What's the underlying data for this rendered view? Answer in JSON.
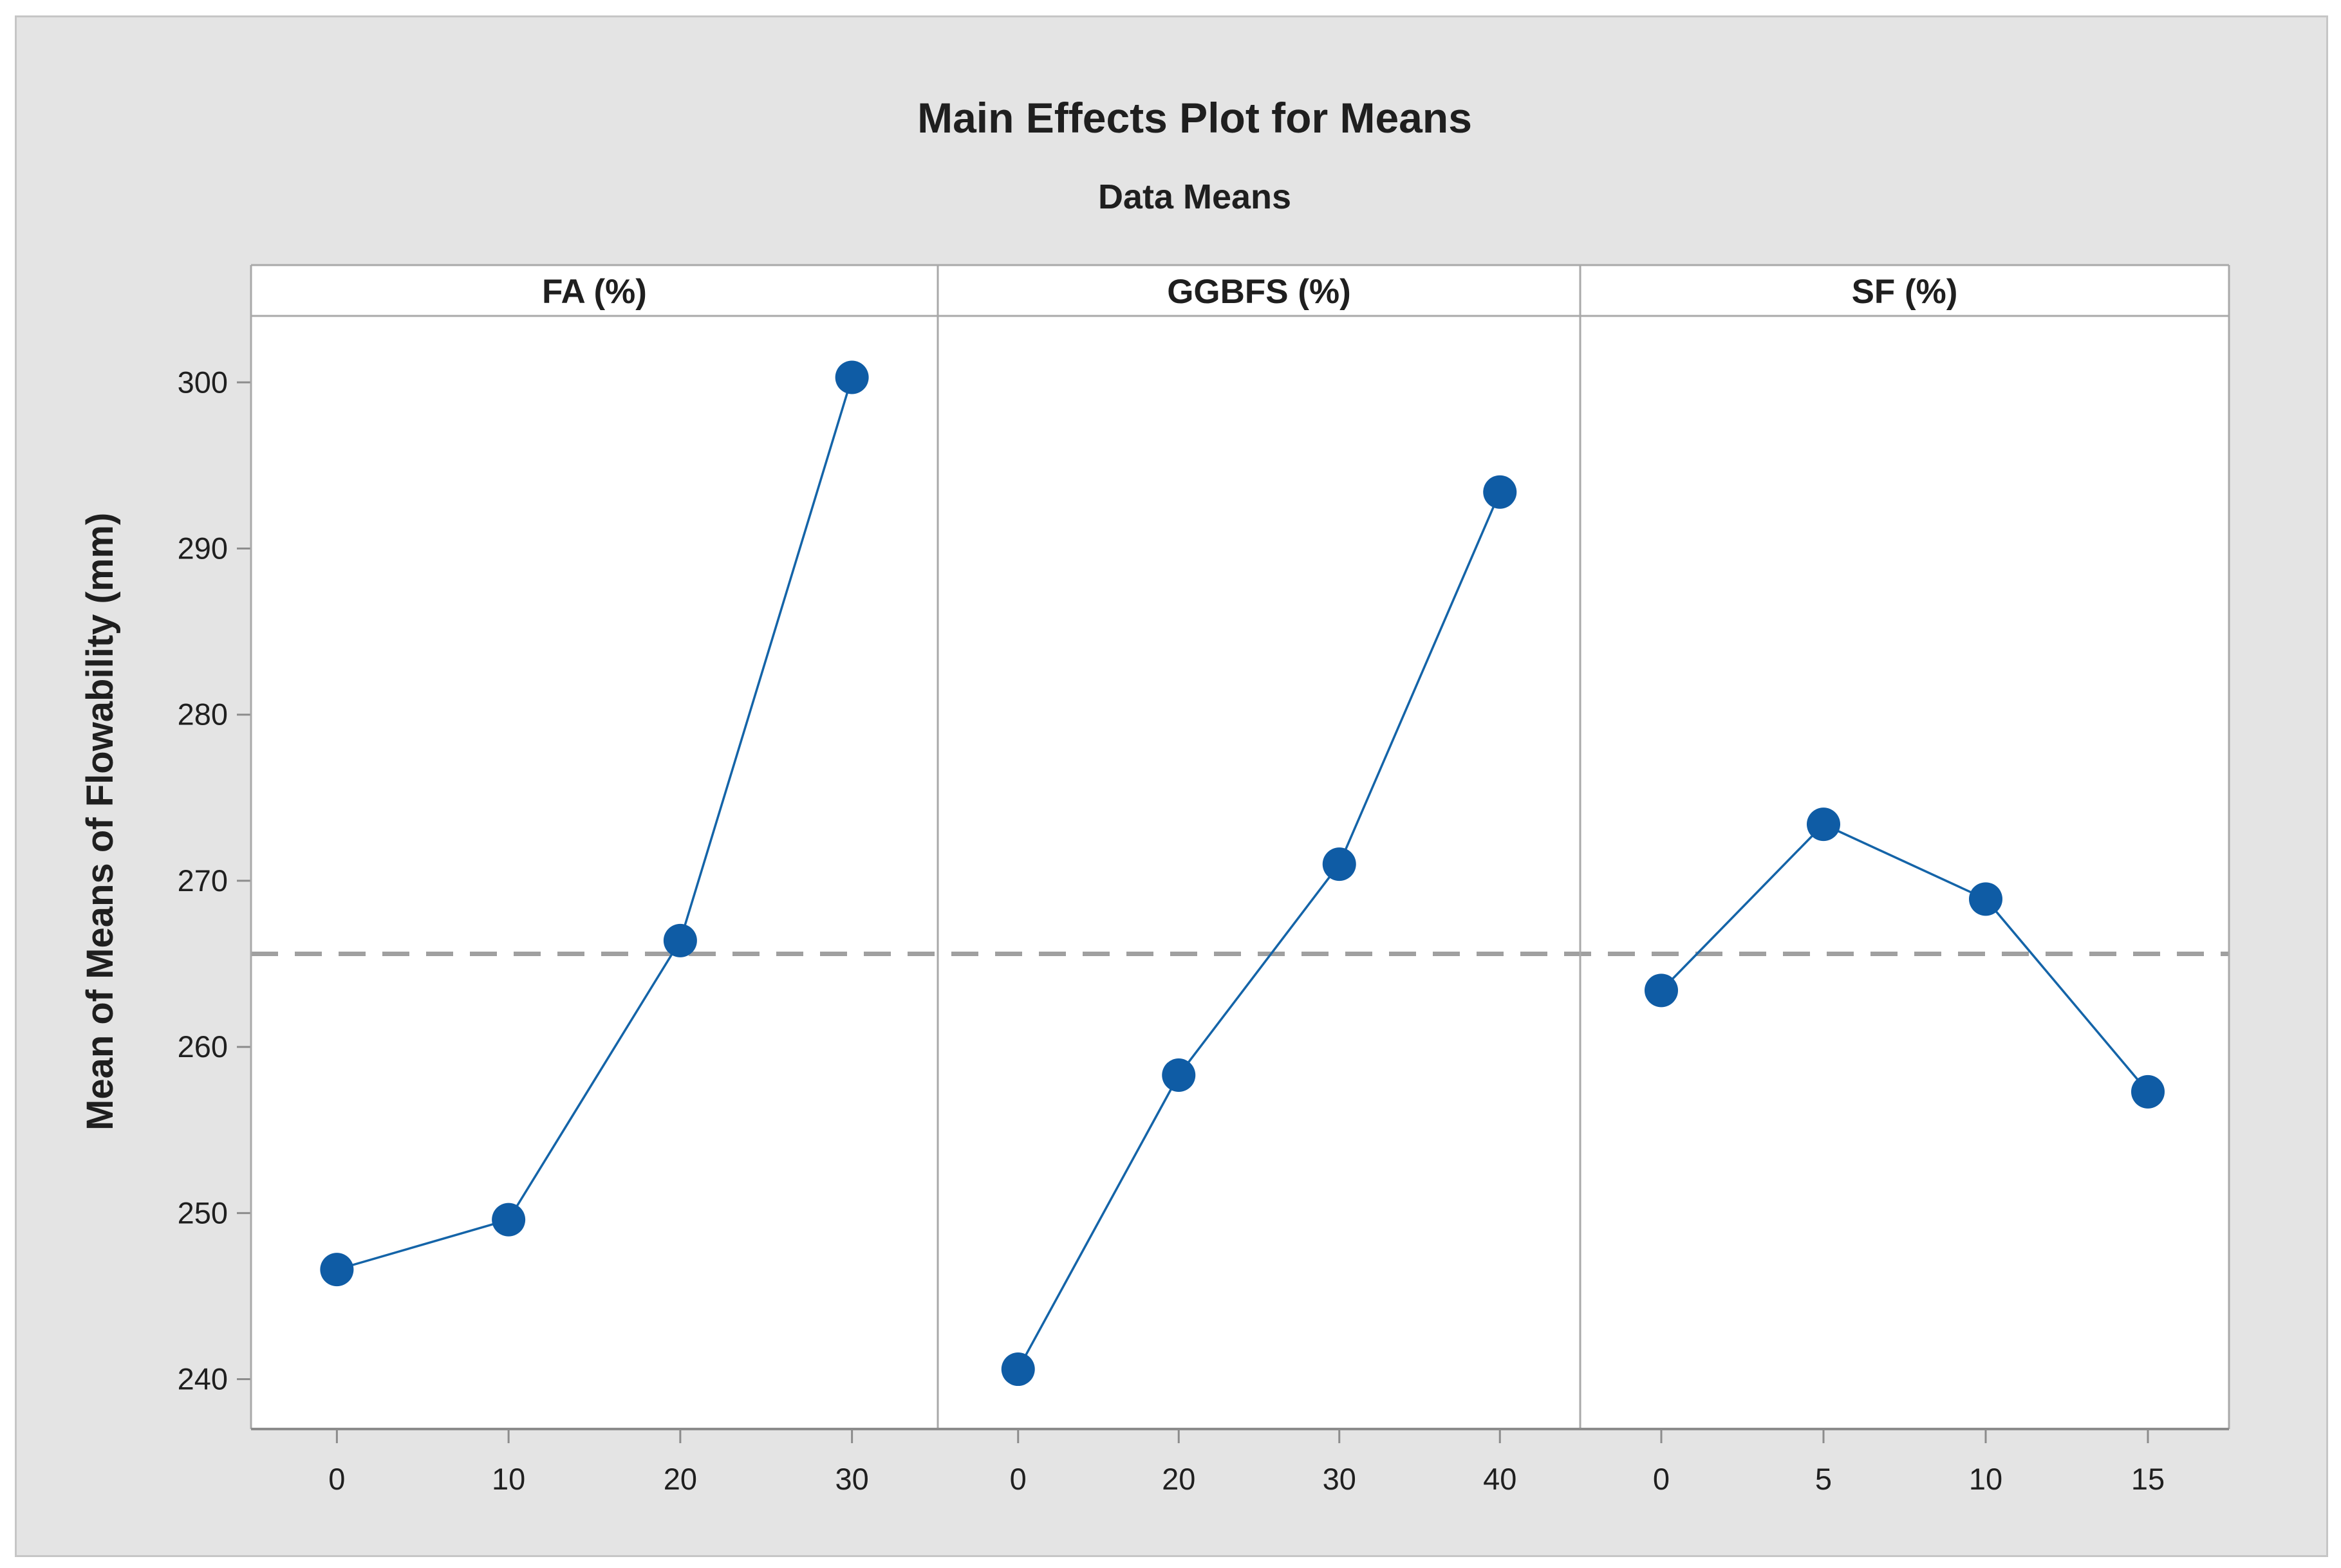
{
  "title": "Main Effects Plot for Means",
  "subtitle": "Data Means",
  "y_axis_label": "Mean of Means of Flowability (mm)",
  "colors": {
    "figure_background": "#e4e4e4",
    "plot_background": "#ffffff",
    "series_line": "#1464a8",
    "point_fill": "#0f5ca5",
    "grand_mean_dash": "#a0a0a0",
    "panel_border": "#a9a9a9",
    "axis_line": "#8c8c8c",
    "text": "#1f1f1f"
  },
  "chart_data": {
    "type": "line",
    "subtype": "main-effects-plot",
    "panel_count": 3,
    "title": "Main Effects Plot for Means",
    "subtitle": "Data Means",
    "ylabel": "Mean of Means of Flowability (mm)",
    "ylim": [
      237.0,
      304.0
    ],
    "yticks": [
      240,
      250,
      260,
      270,
      280,
      290,
      300
    ],
    "grid": false,
    "grand_mean": 265.6,
    "grand_mean_style": "dashed horizontal reference line",
    "panels": [
      {
        "label": "FA (%)",
        "categories": [
          "0",
          "10",
          "20",
          "30"
        ],
        "values": [
          246.6,
          249.6,
          266.4,
          300.3
        ]
      },
      {
        "label": "GGBFS (%)",
        "categories": [
          "0",
          "20",
          "30",
          "40"
        ],
        "values": [
          240.6,
          258.3,
          271.0,
          293.4
        ]
      },
      {
        "label": "SF (%)",
        "categories": [
          "0",
          "5",
          "10",
          "15"
        ],
        "values": [
          263.4,
          273.4,
          268.9,
          257.3
        ]
      }
    ]
  }
}
